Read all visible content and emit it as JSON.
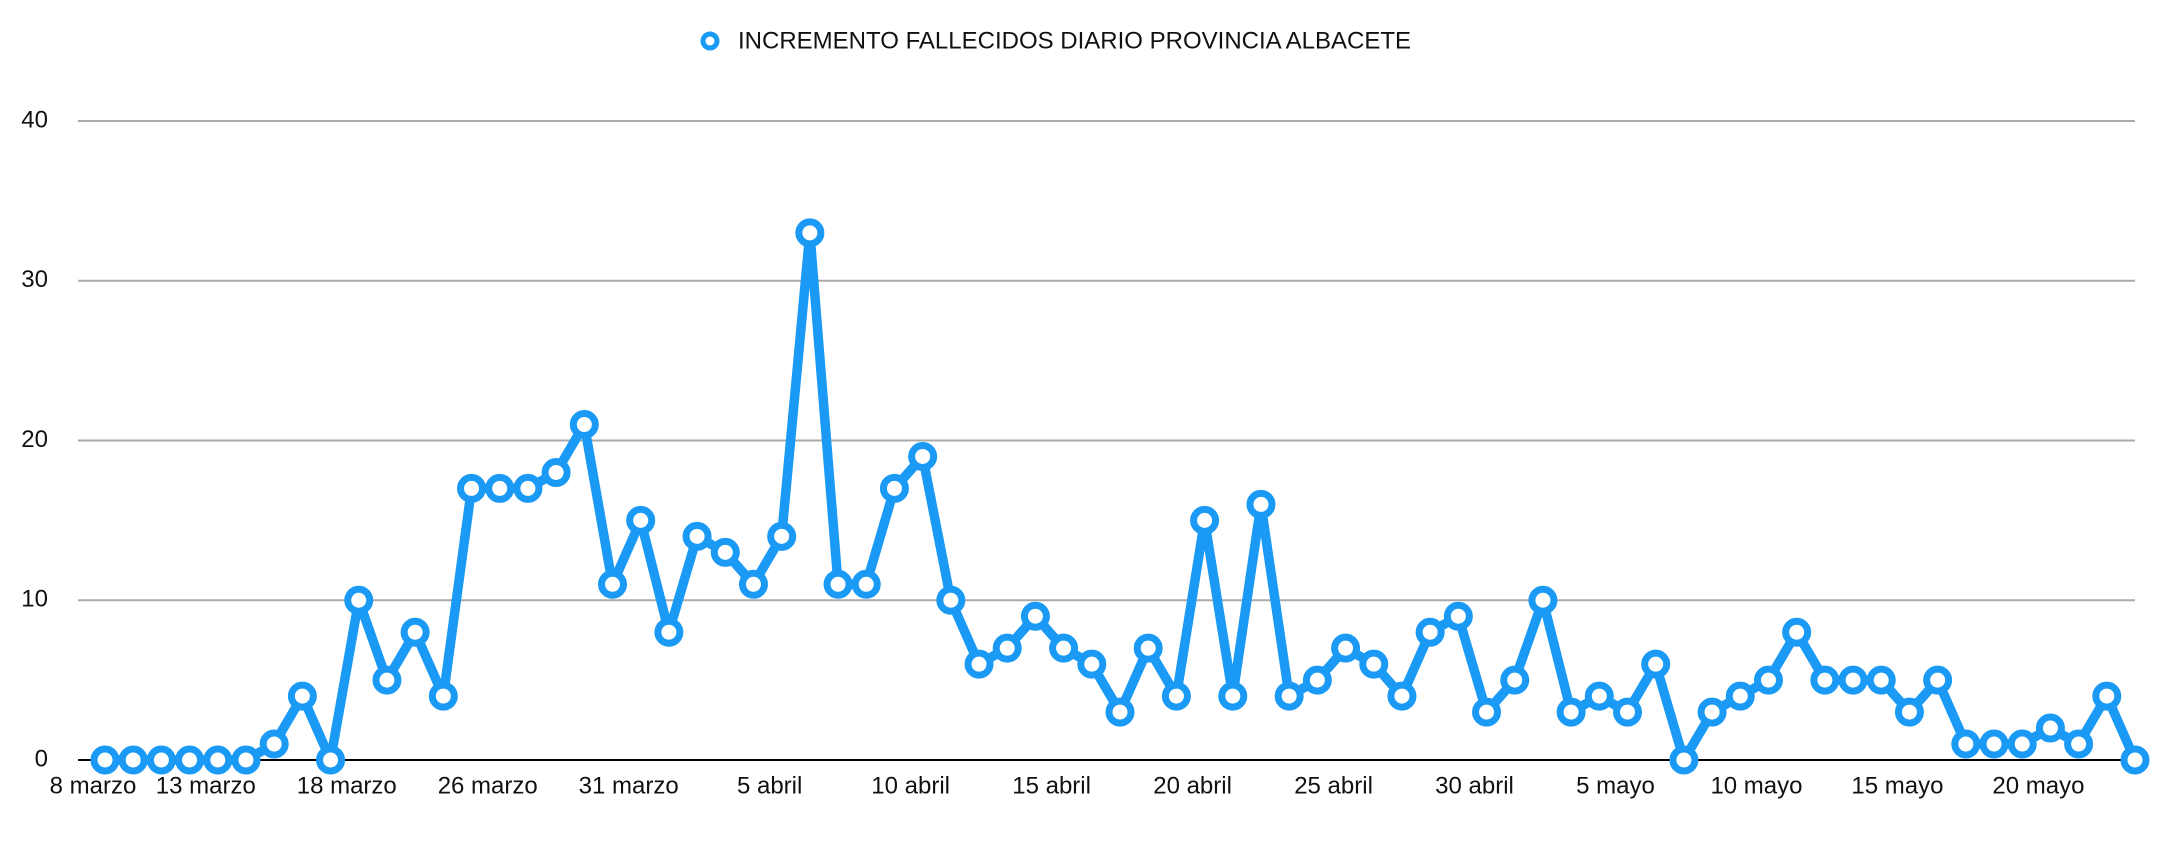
{
  "chart_data": {
    "type": "line",
    "categories": [
      "8 marzo",
      null,
      null,
      null,
      "13 marzo",
      null,
      null,
      null,
      null,
      "18 marzo",
      null,
      null,
      null,
      null,
      "26 marzo",
      null,
      null,
      null,
      null,
      "31 marzo",
      null,
      null,
      null,
      null,
      "5 abril",
      null,
      null,
      null,
      null,
      "10 abril",
      null,
      null,
      null,
      null,
      "15 abril",
      null,
      null,
      null,
      null,
      "20 abril",
      null,
      null,
      null,
      null,
      "25 abril",
      null,
      null,
      null,
      null,
      "30 abril",
      null,
      null,
      null,
      null,
      "5 mayo",
      null,
      null,
      null,
      null,
      "10 mayo",
      null,
      null,
      null,
      null,
      "15 mayo",
      null,
      null,
      null,
      null,
      "20 mayo",
      null,
      null,
      null
    ],
    "series": [
      {
        "name": "INCREMENTO FALLECIDOS DIARIO PROVINCIA ALBACETE",
        "color": "#1a9af5",
        "values": [
          0,
          0,
          0,
          0,
          0,
          0,
          1,
          4,
          0,
          10,
          5,
          8,
          4,
          17,
          17,
          17,
          18,
          21,
          11,
          15,
          8,
          14,
          13,
          11,
          14,
          33,
          11,
          11,
          17,
          19,
          10,
          6,
          7,
          9,
          7,
          6,
          3,
          7,
          4,
          15,
          4,
          16,
          4,
          5,
          7,
          6,
          4,
          8,
          9,
          3,
          5,
          10,
          3,
          4,
          3,
          6,
          0,
          3,
          4,
          5,
          8,
          5,
          5,
          5,
          3,
          5,
          1,
          1,
          1,
          2,
          1,
          4,
          0
        ]
      }
    ],
    "ylim": [
      0,
      40
    ],
    "yticks": [
      0,
      10,
      20,
      30,
      40
    ],
    "grid": true,
    "legend": "top"
  }
}
